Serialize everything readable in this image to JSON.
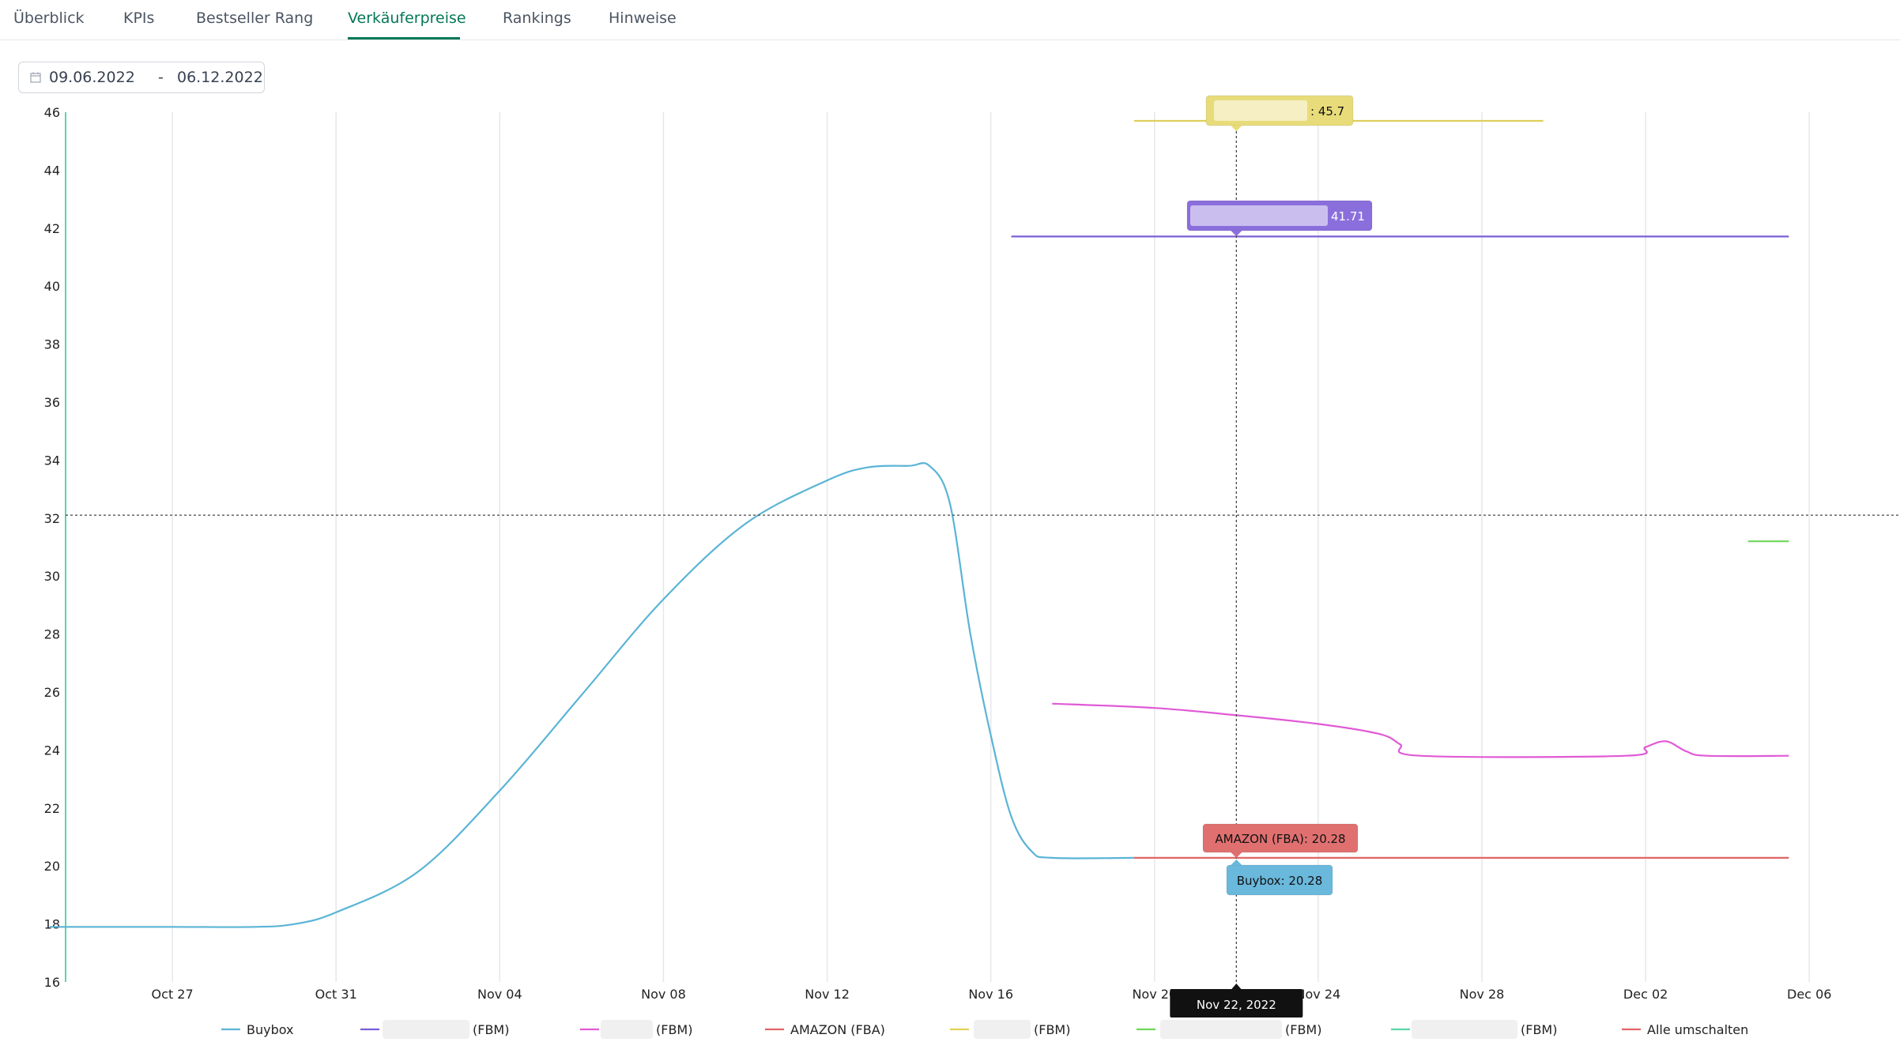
{
  "tabs": [
    {
      "label": "Überblick",
      "active": false
    },
    {
      "label": "KPIs",
      "active": false
    },
    {
      "label": "Bestseller Rang",
      "active": false
    },
    {
      "label": "Verkäuferpreise",
      "active": true
    },
    {
      "label": "Rankings",
      "active": false
    },
    {
      "label": "Hinweise",
      "active": false
    }
  ],
  "date_range": {
    "start": "09.06.2022",
    "separator": "-",
    "end": "06.12.2022",
    "icon": "calendar-icon"
  },
  "colors": {
    "buybox": "#5ab4d6",
    "seller_purple": "#7b5fd6",
    "seller_pink": "#e05ad6",
    "amazon_fba": "#e06666",
    "seller_yellow": "#e0cf5a",
    "seller_green": "#6fd65a",
    "seller_teal": "#5ad6a8",
    "alle_umschalten": "#e06666",
    "tab_active": "#047857"
  },
  "chart_data": {
    "type": "line",
    "title": "",
    "xlabel": "",
    "ylabel": "",
    "ylim": [
      16,
      46
    ],
    "yticks": [
      "16",
      "18",
      "20",
      "22",
      "24",
      "26",
      "28",
      "30",
      "32",
      "34",
      "36",
      "38",
      "40",
      "42",
      "44",
      "46"
    ],
    "xlim": [
      "2022-10-23",
      "2022-12-07"
    ],
    "xticks": [
      {
        "date": "2022-10-27",
        "label": "Oct 27"
      },
      {
        "date": "2022-10-31",
        "label": "Oct 31"
      },
      {
        "date": "2022-11-04",
        "label": "Nov 04"
      },
      {
        "date": "2022-11-08",
        "label": "Nov 08"
      },
      {
        "date": "2022-11-12",
        "label": "Nov 12"
      },
      {
        "date": "2022-11-16",
        "label": "Nov 16"
      },
      {
        "date": "2022-11-20",
        "label": "Nov 20"
      },
      {
        "date": "2022-11-24",
        "label": "Nov 24"
      },
      {
        "date": "2022-11-28",
        "label": "Nov 28"
      },
      {
        "date": "2022-12-02",
        "label": "Dec 02"
      },
      {
        "date": "2022-12-06",
        "label": "Dec 06"
      }
    ],
    "grid": "vertical",
    "crosshair": {
      "date": "2022-11-22",
      "label": "Nov 22, 2022",
      "y": 32.1
    },
    "series": [
      {
        "key": "buybox",
        "name": "Buybox",
        "color": "#5ab4d6",
        "points": [
          [
            "2022-10-24",
            17.9
          ],
          [
            "2022-10-27",
            17.9
          ],
          [
            "2022-10-29",
            17.9
          ],
          [
            "2022-10-30",
            18.0
          ],
          [
            "2022-10-31",
            18.4
          ],
          [
            "2022-11-02",
            19.8
          ],
          [
            "2022-11-04",
            22.6
          ],
          [
            "2022-11-06",
            25.9
          ],
          [
            "2022-11-08",
            29.2
          ],
          [
            "2022-11-10",
            31.8
          ],
          [
            "2022-11-12",
            33.3
          ],
          [
            "2022-11-13",
            33.75
          ],
          [
            "2022-11-14",
            33.8
          ],
          [
            "2022-11-14T12:00",
            33.8
          ],
          [
            "2022-11-15",
            32.5
          ],
          [
            "2022-11-15T12:00",
            28.0
          ],
          [
            "2022-11-16",
            24.5
          ],
          [
            "2022-11-16T12:00",
            21.7
          ],
          [
            "2022-11-17",
            20.5
          ],
          [
            "2022-11-17T12:00",
            20.28
          ],
          [
            "2022-11-19T12:00",
            20.28
          ]
        ]
      },
      {
        "key": "seller_purple",
        "name": "(FBM)",
        "color": "#7b5fd6",
        "points": [
          [
            "2022-11-16T12:00",
            41.71
          ],
          [
            "2022-12-05T12:00",
            41.71
          ]
        ]
      },
      {
        "key": "seller_pink",
        "name": "(FBM)",
        "color": "#e05ad6",
        "points": [
          [
            "2022-11-17T12:00",
            25.6
          ],
          [
            "2022-11-20",
            25.45
          ],
          [
            "2022-11-22",
            25.2
          ],
          [
            "2022-11-24",
            24.9
          ],
          [
            "2022-11-25T12:00",
            24.55
          ],
          [
            "2022-11-26",
            24.2
          ],
          [
            "2022-11-26T12:00",
            23.8
          ],
          [
            "2022-12-01T12:00",
            23.8
          ],
          [
            "2022-12-02",
            24.1
          ],
          [
            "2022-12-02T12:00",
            24.3
          ],
          [
            "2022-12-03",
            23.95
          ],
          [
            "2022-12-03T12:00",
            23.8
          ],
          [
            "2022-12-05T12:00",
            23.8
          ]
        ]
      },
      {
        "key": "amazon_fba",
        "name": "AMAZON (FBA)",
        "color": "#e06666",
        "points": [
          [
            "2022-11-19T12:00",
            20.28
          ],
          [
            "2022-12-05T12:00",
            20.28
          ]
        ]
      },
      {
        "key": "seller_yellow",
        "name": "(FBM)",
        "color": "#e0cf5a",
        "points": [
          [
            "2022-11-19T12:00",
            45.7
          ],
          [
            "2022-11-29T12:00",
            45.7
          ]
        ]
      },
      {
        "key": "seller_green",
        "name": "(FBM)",
        "color": "#6fd65a",
        "points": [
          [
            "2022-12-04T12:00",
            31.2
          ],
          [
            "2022-12-05T12:00",
            31.2
          ]
        ]
      },
      {
        "key": "seller_teal",
        "name": "(FBM)",
        "color": "#5ad6a8",
        "points": []
      }
    ],
    "tooltips": [
      {
        "key": "seller_yellow",
        "text": ": 45.7",
        "bg": "#e8dc7a",
        "value": 45.7,
        "redacted": true
      },
      {
        "key": "seller_purple",
        "text": "41.71",
        "bg": "#8a6fdc",
        "value": 41.71,
        "redacted": true
      },
      {
        "key": "amazon_fba",
        "text": "AMAZON (FBA): 20.28",
        "bg": "#e07070",
        "value": 20.28,
        "redacted": false
      },
      {
        "key": "buybox",
        "text": "Buybox: 20.28",
        "bg": "#6ab8dc",
        "value": 20.28,
        "redacted": false
      }
    ],
    "legend": {
      "placement": "bottom",
      "items": [
        {
          "key": "buybox",
          "label": "Buybox",
          "color": "#5ab4d6",
          "redacted": false
        },
        {
          "key": "seller_purple",
          "label": "(FBM)",
          "color": "#7b5fd6",
          "redacted": true
        },
        {
          "key": "seller_pink",
          "label": "(FBM)",
          "color": "#e05ad6",
          "redacted": true
        },
        {
          "key": "amazon_fba",
          "label": "AMAZON (FBA)",
          "color": "#e06666",
          "redacted": false
        },
        {
          "key": "seller_yellow",
          "label": "(FBM)",
          "color": "#e0cf5a",
          "redacted": true
        },
        {
          "key": "seller_green",
          "label": "(FBM)",
          "color": "#6fd65a",
          "redacted": true
        },
        {
          "key": "seller_teal",
          "label": "(FBM)",
          "color": "#5ad6a8",
          "redacted": true
        },
        {
          "key": "alle_umschalten",
          "label": "Alle umschalten",
          "color": "#e06666",
          "redacted": false
        }
      ]
    }
  }
}
